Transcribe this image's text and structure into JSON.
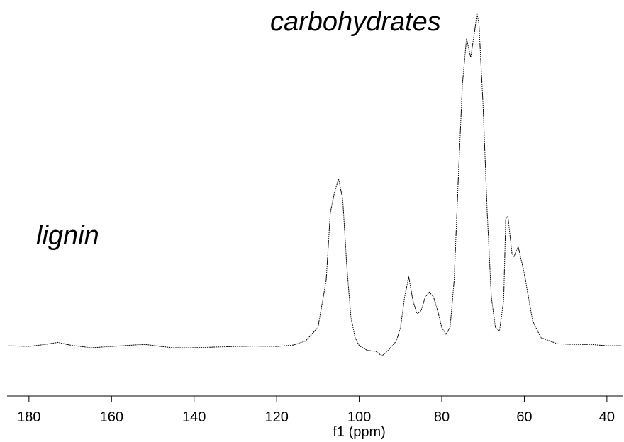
{
  "chart_data": {
    "type": "line",
    "xlabel": "f1 (ppm)",
    "ylabel": "",
    "x_reversed": true,
    "xlim": [
      185.3,
      36.2
    ],
    "ylim": [
      0,
      100
    ],
    "grid": false,
    "xticks": [
      180,
      160,
      140,
      120,
      100,
      80,
      60,
      40
    ],
    "annotations": [
      {
        "text": "carbohydrates"
      },
      {
        "text": "lignin"
      }
    ],
    "colors": {
      "line": "#000000",
      "axis": "#000000"
    },
    "series": [
      {
        "values": [
          {
            "x": 185.0,
            "y": 0.6
          },
          {
            "x": 180.0,
            "y": 0.4
          },
          {
            "x": 176.0,
            "y": 1.0
          },
          {
            "x": 173.0,
            "y": 1.6
          },
          {
            "x": 170.0,
            "y": 0.8
          },
          {
            "x": 165.0,
            "y": 0.0
          },
          {
            "x": 160.0,
            "y": 0.4
          },
          {
            "x": 155.0,
            "y": 0.8
          },
          {
            "x": 152.0,
            "y": 1.0
          },
          {
            "x": 148.0,
            "y": 0.4
          },
          {
            "x": 145.0,
            "y": 0.0
          },
          {
            "x": 140.0,
            "y": 0.0
          },
          {
            "x": 135.0,
            "y": 0.2
          },
          {
            "x": 130.0,
            "y": 0.4
          },
          {
            "x": 125.0,
            "y": 0.5
          },
          {
            "x": 120.0,
            "y": 0.4
          },
          {
            "x": 116.0,
            "y": 0.8
          },
          {
            "x": 113.0,
            "y": 2.0
          },
          {
            "x": 110.0,
            "y": 6.0
          },
          {
            "x": 108.0,
            "y": 20.0
          },
          {
            "x": 107.0,
            "y": 40.0
          },
          {
            "x": 106.0,
            "y": 46.0
          },
          {
            "x": 105.0,
            "y": 50.0
          },
          {
            "x": 104.0,
            "y": 44.0
          },
          {
            "x": 103.0,
            "y": 24.0
          },
          {
            "x": 102.0,
            "y": 9.0
          },
          {
            "x": 101.0,
            "y": 3.0
          },
          {
            "x": 100.0,
            "y": 0.6
          },
          {
            "x": 98.0,
            "y": -0.8
          },
          {
            "x": 96.0,
            "y": -1.0
          },
          {
            "x": 94.5,
            "y": -2.4
          },
          {
            "x": 93.0,
            "y": -0.8
          },
          {
            "x": 91.0,
            "y": 2.0
          },
          {
            "x": 90.0,
            "y": 6.0
          },
          {
            "x": 89.0,
            "y": 15.0
          },
          {
            "x": 88.0,
            "y": 21.0
          },
          {
            "x": 87.0,
            "y": 14.0
          },
          {
            "x": 86.0,
            "y": 10.0
          },
          {
            "x": 85.0,
            "y": 11.0
          },
          {
            "x": 84.0,
            "y": 15.0
          },
          {
            "x": 83.0,
            "y": 16.5
          },
          {
            "x": 82.0,
            "y": 15.0
          },
          {
            "x": 81.0,
            "y": 11.0
          },
          {
            "x": 80.0,
            "y": 6.0
          },
          {
            "x": 79.0,
            "y": 4.0
          },
          {
            "x": 78.0,
            "y": 6.0
          },
          {
            "x": 77.0,
            "y": 20.0
          },
          {
            "x": 76.0,
            "y": 50.0
          },
          {
            "x": 75.0,
            "y": 78.0
          },
          {
            "x": 74.0,
            "y": 91.5
          },
          {
            "x": 73.0,
            "y": 86.0
          },
          {
            "x": 72.0,
            "y": 94.0
          },
          {
            "x": 71.5,
            "y": 99.0
          },
          {
            "x": 71.0,
            "y": 96.0
          },
          {
            "x": 70.0,
            "y": 72.0
          },
          {
            "x": 69.0,
            "y": 40.0
          },
          {
            "x": 68.0,
            "y": 15.0
          },
          {
            "x": 67.0,
            "y": 6.0
          },
          {
            "x": 66.0,
            "y": 5.0
          },
          {
            "x": 65.0,
            "y": 14.0
          },
          {
            "x": 64.5,
            "y": 38.0
          },
          {
            "x": 64.0,
            "y": 39.0
          },
          {
            "x": 63.0,
            "y": 28.0
          },
          {
            "x": 62.5,
            "y": 27.0
          },
          {
            "x": 61.5,
            "y": 30.0
          },
          {
            "x": 60.0,
            "y": 22.0
          },
          {
            "x": 58.0,
            "y": 8.0
          },
          {
            "x": 56.0,
            "y": 3.0
          },
          {
            "x": 52.0,
            "y": 1.2
          },
          {
            "x": 48.0,
            "y": 1.0
          },
          {
            "x": 44.0,
            "y": 1.0
          },
          {
            "x": 40.0,
            "y": 0.6
          },
          {
            "x": 36.5,
            "y": 0.6
          }
        ]
      }
    ]
  }
}
